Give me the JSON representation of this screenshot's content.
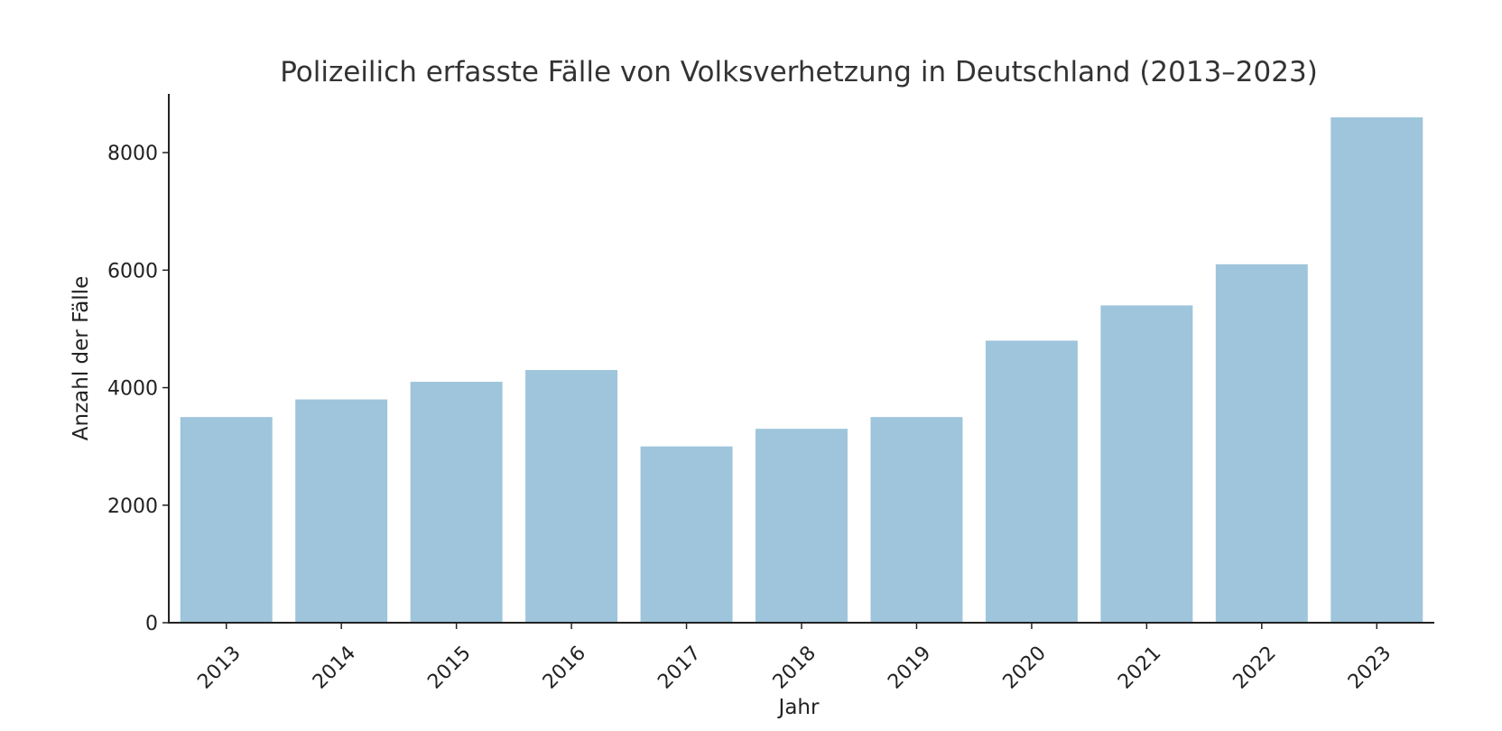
{
  "chart_data": {
    "type": "bar",
    "title": "Polizeilich erfasste Fälle von Volksverhetzung in Deutschland (2013–2023)",
    "xlabel": "Jahr",
    "ylabel": "Anzahl der Fälle",
    "categories": [
      "2013",
      "2014",
      "2015",
      "2016",
      "2017",
      "2018",
      "2019",
      "2020",
      "2021",
      "2022",
      "2023"
    ],
    "values": [
      3500,
      3800,
      4100,
      4300,
      3000,
      3300,
      3500,
      4800,
      5400,
      6100,
      8600
    ],
    "ylim": [
      0,
      9000
    ],
    "yticks": [
      0,
      2000,
      4000,
      6000,
      8000
    ],
    "grid": false,
    "colors": {
      "bar": "#9ec5db",
      "axis": "#222222",
      "title": "#333333"
    }
  }
}
